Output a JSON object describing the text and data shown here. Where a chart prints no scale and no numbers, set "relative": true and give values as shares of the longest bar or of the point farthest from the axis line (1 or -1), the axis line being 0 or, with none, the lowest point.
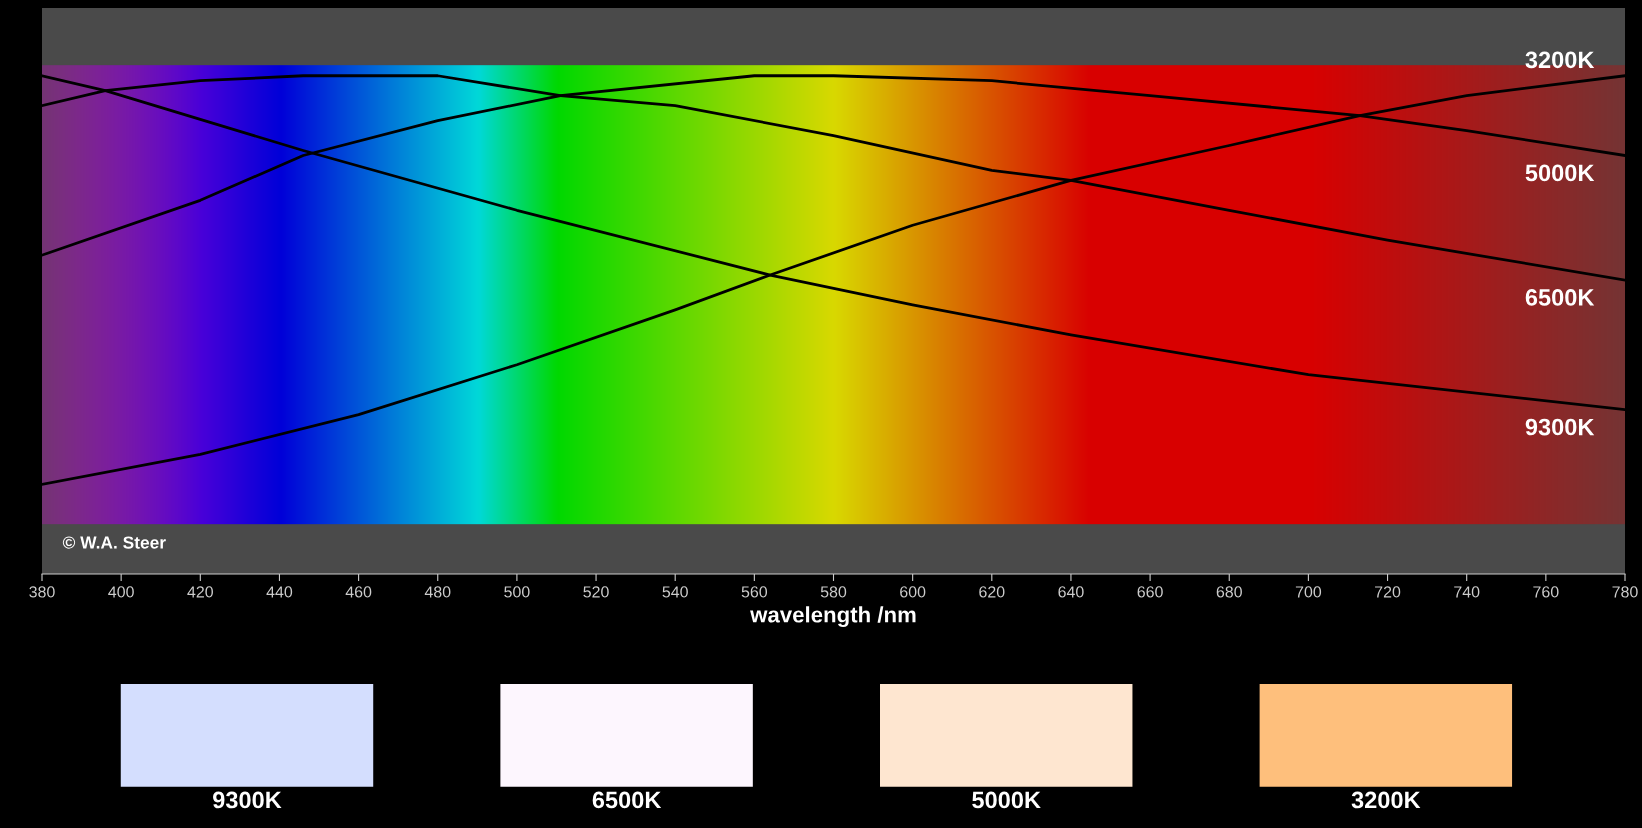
{
  "chart_data": [
    {
      "type": "line",
      "xlabel": "wavelength /nm",
      "relative": true,
      "xlim": [
        380,
        780
      ],
      "xticks": [
        380,
        400,
        420,
        440,
        460,
        480,
        500,
        520,
        540,
        560,
        580,
        600,
        620,
        640,
        660,
        680,
        700,
        720,
        740,
        760,
        780
      ],
      "annotations": [
        "© W.A. Steer"
      ],
      "series": [
        {
          "name": "3200K",
          "color": "#000000",
          "x": [
            380,
            420,
            460,
            500,
            540,
            564,
            600,
            640,
            680,
            713,
            740,
            780
          ],
          "values": [
            0.18,
            0.24,
            0.32,
            0.42,
            0.53,
            0.6,
            0.7,
            0.79,
            0.86,
            0.92,
            0.96,
            1
          ]
        },
        {
          "name": "5000K",
          "color": "#000000",
          "x": [
            380,
            420,
            446,
            480,
            511,
            560,
            580,
            620,
            660,
            713,
            740,
            780
          ],
          "values": [
            0.64,
            0.75,
            0.84,
            0.91,
            0.96,
            1,
            1,
            0.99,
            0.96,
            0.92,
            0.89,
            0.84
          ]
        },
        {
          "name": "6500K",
          "color": "#000000",
          "x": [
            380,
            396,
            420,
            446,
            480,
            511,
            540,
            580,
            620,
            640,
            680,
            720,
            780
          ],
          "values": [
            0.94,
            0.97,
            0.99,
            1,
            1,
            0.96,
            0.94,
            0.88,
            0.81,
            0.79,
            0.73,
            0.67,
            0.59
          ]
        },
        {
          "name": "9300K",
          "color": "#000000",
          "x": [
            380,
            396,
            446,
            500,
            564,
            600,
            640,
            700,
            780
          ],
          "values": [
            1,
            0.97,
            0.85,
            0.73,
            0.6,
            0.54,
            0.48,
            0.4,
            0.33
          ]
        }
      ]
    },
    {
      "type": "other",
      "categories": [
        "9300K",
        "6500K",
        "5000K",
        "3200K"
      ],
      "colors": [
        "#d4defe",
        "#fdf6fe",
        "#fee6d0",
        "#febf7c"
      ]
    }
  ]
}
